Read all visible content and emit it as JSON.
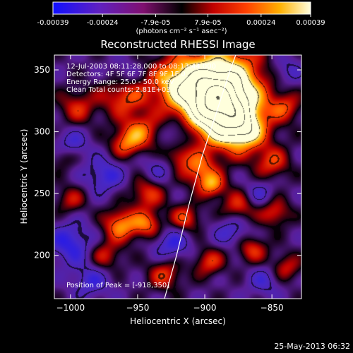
{
  "colorbar": {
    "tick_labels": [
      "-0.00039",
      "-0.00024",
      "-7.9e-05",
      "7.9e-05",
      "0.00024",
      "0.00039"
    ],
    "tick_values": [
      -0.00039,
      -0.00024,
      -7.9e-05,
      7.9e-05,
      0.00024,
      0.00039
    ],
    "range": [
      -0.00039,
      0.00039
    ],
    "unit_label": "(photons cm⁻² s⁻¹ asec⁻²)"
  },
  "chart_data": {
    "type": "heatmap",
    "title": "Reconstructed RHESSI Image",
    "xlabel": "Heliocentric X (arcsec)",
    "ylabel": "Heliocentric Y (arcsec)",
    "xlim": [
      -1012,
      -828
    ],
    "ylim": [
      165,
      362
    ],
    "x_ticks": [
      -1000,
      -950,
      -900,
      -850
    ],
    "x_tick_labels": [
      "−1000",
      "−950",
      "−900",
      "−850"
    ],
    "y_ticks": [
      200,
      250,
      300,
      350
    ],
    "y_tick_labels": [
      "200",
      "250",
      "300",
      "350"
    ],
    "annotations": [
      "12-Jul-2003 08:11:28.000 to 08:13:44.000",
      "Detectors: 4F 5F 6F 7F 8F 9F 1F 0",
      "Energy Range: 25.0 - 50.0 keV",
      "Clean     Total counts: 2.81E+03"
    ],
    "peak_label": "Position of Peak = [-918,350]",
    "peak": [
      -918,
      350
    ],
    "limb_curve": [
      [
        -930,
        165
      ],
      [
        -921,
        200
      ],
      [
        -912,
        240
      ],
      [
        -902,
        280
      ],
      [
        -893,
        310
      ],
      [
        -881,
        350
      ],
      [
        -877,
        362
      ]
    ],
    "sources": [
      [
        -888,
        340,
        22,
        1.0
      ],
      [
        -882,
        310,
        18,
        0.9
      ],
      [
        -895,
        325,
        16,
        0.8
      ],
      [
        -922,
        340,
        14,
        0.6
      ],
      [
        -960,
        330,
        12,
        0.55
      ],
      [
        -948,
        300,
        10,
        0.55
      ],
      [
        -995,
        320,
        10,
        0.4
      ],
      [
        -905,
        270,
        9,
        0.55
      ],
      [
        -960,
        290,
        8,
        0.45
      ],
      [
        -943,
        250,
        9,
        0.45
      ],
      [
        -870,
        300,
        10,
        0.5
      ],
      [
        -850,
        275,
        9,
        0.45
      ],
      [
        -840,
        320,
        8,
        0.4
      ],
      [
        -895,
        257,
        7,
        0.6
      ],
      [
        -963,
        225,
        9,
        0.65
      ],
      [
        -943,
        225,
        8,
        0.55
      ],
      [
        -915,
        230,
        8,
        0.5
      ],
      [
        -875,
        240,
        9,
        0.45
      ],
      [
        -848,
        235,
        8,
        0.45
      ],
      [
        -975,
        200,
        9,
        0.4
      ],
      [
        -930,
        185,
        9,
        0.45
      ],
      [
        -897,
        195,
        8,
        0.45
      ],
      [
        -865,
        205,
        8,
        0.45
      ],
      [
        -840,
        190,
        8,
        0.4
      ],
      [
        -1000,
        245,
        8,
        0.35
      ],
      [
        -1005,
        280,
        7,
        0.3
      ],
      [
        -920,
        280,
        7,
        0.35
      ],
      [
        -960,
        345,
        9,
        -0.3
      ],
      [
        -1000,
        210,
        12,
        -0.45
      ],
      [
        -975,
        265,
        10,
        -0.4
      ],
      [
        -925,
        210,
        10,
        -0.4
      ],
      [
        -880,
        220,
        9,
        -0.35
      ],
      [
        -1000,
        290,
        9,
        -0.35
      ],
      [
        -985,
        180,
        10,
        -0.35
      ],
      [
        -860,
        250,
        8,
        -0.3
      ],
      [
        -920,
        300,
        8,
        -0.3
      ],
      [
        -855,
        180,
        9,
        -0.3
      ],
      [
        -935,
        270,
        8,
        -0.25
      ],
      [
        -840,
        350,
        9,
        -0.3
      ]
    ]
  },
  "footer": {
    "timestamp": "25-May-2013 06:32"
  }
}
